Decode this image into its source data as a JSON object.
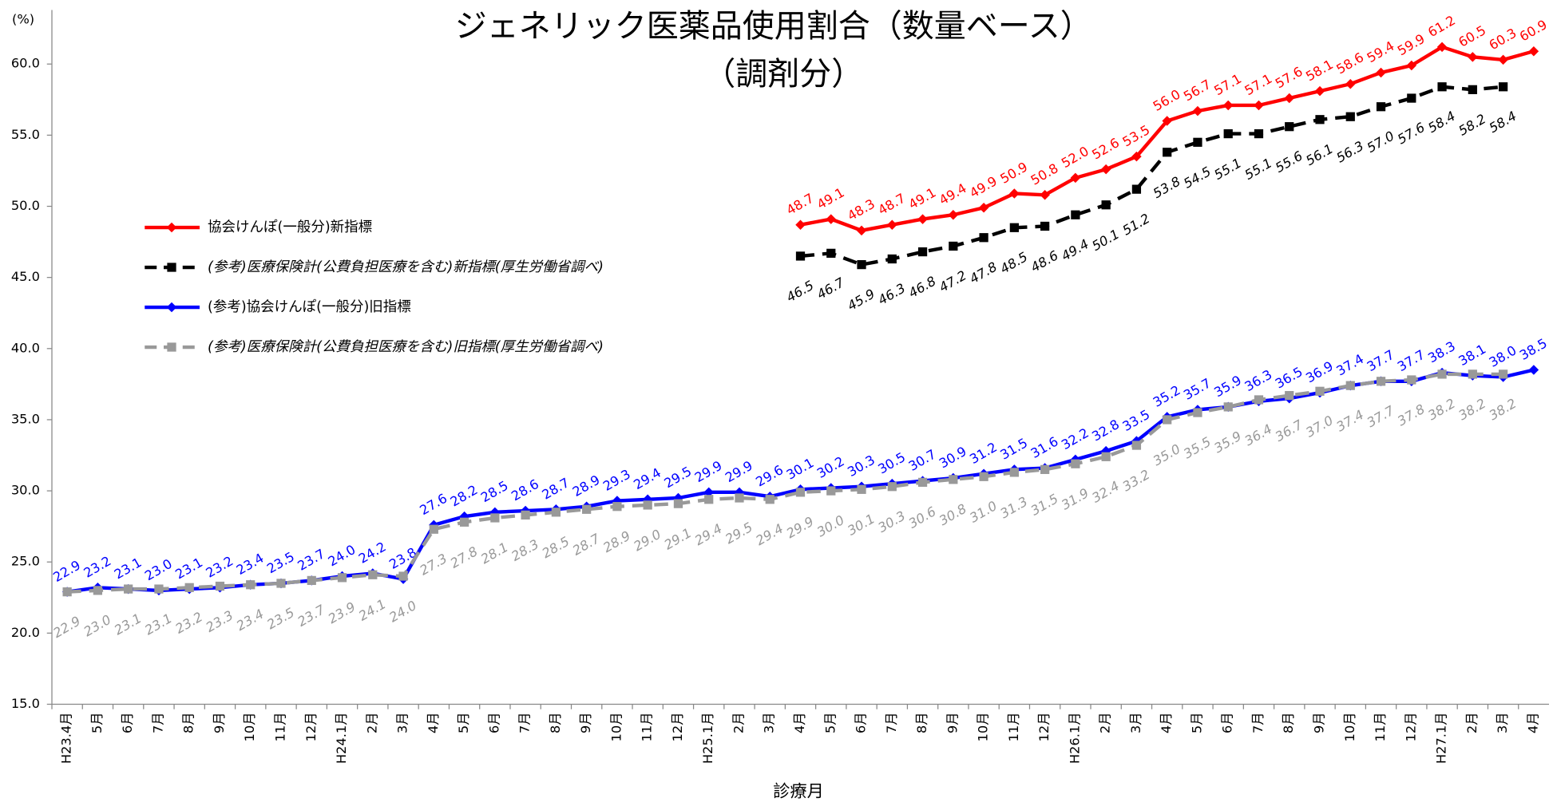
{
  "chart_data": {
    "type": "line",
    "title": "ジェネリック医薬品使用割合（数量ベース）",
    "subtitle": "（調剤分）",
    "y_axis_label": "(%)",
    "x_axis_label": "診療月",
    "categories": [
      "H23.4月",
      "5月",
      "6月",
      "7月",
      "8月",
      "9月",
      "10月",
      "11月",
      "12月",
      "H24.1月",
      "2月",
      "3月",
      "4月",
      "5月",
      "6月",
      "7月",
      "8月",
      "9月",
      "10月",
      "11月",
      "12月",
      "H25.1月",
      "2月",
      "3月",
      "4月",
      "5月",
      "6月",
      "7月",
      "8月",
      "9月",
      "10月",
      "11月",
      "12月",
      "H26.1月",
      "2月",
      "3月",
      "4月",
      "5月",
      "6月",
      "7月",
      "8月",
      "9月",
      "10月",
      "11月",
      "12月",
      "H27.1月",
      "2月",
      "3月",
      "4月"
    ],
    "ylim": [
      15,
      63.8
    ],
    "yticks": [
      {
        "value": 15,
        "label": "15.0"
      },
      {
        "value": 20,
        "label": "20.0"
      },
      {
        "value": 25,
        "label": "25.0"
      },
      {
        "value": 30,
        "label": "30.0"
      },
      {
        "value": 35,
        "label": "35.0"
      },
      {
        "value": 40,
        "label": "40.0"
      },
      {
        "value": 45,
        "label": "45.0"
      },
      {
        "value": 50,
        "label": "50.0"
      },
      {
        "value": 55,
        "label": "55.0"
      },
      {
        "value": 60,
        "label": "60.0"
      }
    ],
    "legend": "upper left",
    "series": [
      {
        "name": "協会けんぽ(一般分)新指標",
        "color": "#ff0000",
        "marker": "diamond",
        "dashed": false,
        "label_side": "above",
        "values": [
          null,
          null,
          null,
          null,
          null,
          null,
          null,
          null,
          null,
          null,
          null,
          null,
          null,
          null,
          null,
          null,
          null,
          null,
          null,
          null,
          null,
          null,
          null,
          null,
          48.7,
          49.1,
          48.3,
          48.7,
          49.1,
          49.4,
          49.9,
          50.9,
          50.8,
          52.0,
          52.6,
          53.5,
          56.0,
          56.7,
          57.1,
          57.1,
          57.6,
          58.1,
          58.6,
          59.4,
          59.9,
          61.2,
          60.5,
          60.3,
          60.9
        ],
        "value_labels": [
          null,
          null,
          null,
          null,
          null,
          null,
          null,
          null,
          null,
          null,
          null,
          null,
          null,
          null,
          null,
          null,
          null,
          null,
          null,
          null,
          null,
          null,
          null,
          null,
          "48.7",
          "49.1",
          "48.3",
          "48.7",
          "49.1",
          "49.4",
          "49.9",
          "50.9",
          "50.8",
          "52.0",
          "52.6",
          "53.5",
          "56.0",
          "56.7",
          "57.1",
          "57.1",
          "57.6",
          "58.1",
          "58.6",
          "59.4",
          "59.9",
          "61.2",
          "60.5",
          "60.3",
          "60.9"
        ]
      },
      {
        "name": "(参考)医療保険計(公費負担医療を含む)新指標(厚生労働省調べ)",
        "color": "#000000",
        "marker": "square",
        "dashed": true,
        "label_side": "below",
        "values": [
          null,
          null,
          null,
          null,
          null,
          null,
          null,
          null,
          null,
          null,
          null,
          null,
          null,
          null,
          null,
          null,
          null,
          null,
          null,
          null,
          null,
          null,
          null,
          null,
          46.5,
          46.7,
          45.9,
          46.3,
          46.8,
          47.2,
          47.8,
          48.5,
          48.6,
          49.4,
          50.1,
          51.2,
          53.8,
          54.5,
          55.1,
          55.1,
          55.6,
          56.1,
          56.3,
          57.0,
          57.6,
          58.4,
          58.2,
          58.4,
          null
        ],
        "value_labels": [
          null,
          null,
          null,
          null,
          null,
          null,
          null,
          null,
          null,
          null,
          null,
          null,
          null,
          null,
          null,
          null,
          null,
          null,
          null,
          null,
          null,
          null,
          null,
          null,
          "46.5",
          "46.7",
          "45.9",
          "46.3",
          "46.8",
          "47.2",
          "47.8",
          "48.5",
          "48.6",
          "49.4",
          "50.1",
          "51.2",
          "53.8",
          "54.5",
          "55.1",
          "55.1",
          "55.6",
          "56.1",
          "56.3",
          "57.0",
          "57.6",
          "58.4",
          "58.2",
          "58.4",
          null
        ]
      },
      {
        "name": "(参考)協会けんぽ(一般分)旧指標",
        "color": "#0000ff",
        "marker": "diamond",
        "dashed": false,
        "label_side": "above",
        "values": [
          22.9,
          23.2,
          23.1,
          23.0,
          23.1,
          23.2,
          23.4,
          23.5,
          23.7,
          24.0,
          24.2,
          23.8,
          27.6,
          28.2,
          28.5,
          28.6,
          28.7,
          28.9,
          29.3,
          29.4,
          29.5,
          29.9,
          29.9,
          29.6,
          30.1,
          30.2,
          30.3,
          30.5,
          30.7,
          30.9,
          31.2,
          31.5,
          31.6,
          32.2,
          32.8,
          33.5,
          35.2,
          35.7,
          35.9,
          36.3,
          36.5,
          36.9,
          37.4,
          37.7,
          37.7,
          38.3,
          38.1,
          38.0,
          38.5
        ],
        "value_labels": [
          "22.9",
          "23.2",
          "23.1",
          "23.0",
          "23.1",
          "23.2",
          "23.4",
          "23.5",
          "23.7",
          "24.0",
          "24.2",
          "23.8",
          "27.6",
          "28.2",
          "28.5",
          "28.6",
          "28.7",
          "28.9",
          "29.3",
          "29.4",
          "29.5",
          "29.9",
          "29.9",
          "29.6",
          "30.1",
          "30.2",
          "30.3",
          "30.5",
          "30.7",
          "30.9",
          "31.2",
          "31.5",
          "31.6",
          "32.2",
          "32.8",
          "33.5",
          "35.2",
          "35.7",
          "35.9",
          "36.3",
          "36.5",
          "36.9",
          "37.4",
          "37.7",
          "37.7",
          "38.3",
          "38.1",
          "38.0",
          "38.5"
        ]
      },
      {
        "name": "(参考)医療保険計(公費負担医療を含む)旧指標(厚生労働省調べ)",
        "color": "#999999",
        "marker": "square",
        "dashed": true,
        "label_side": "below",
        "values": [
          22.9,
          23.0,
          23.1,
          23.1,
          23.2,
          23.3,
          23.4,
          23.5,
          23.7,
          23.9,
          24.1,
          24.0,
          27.3,
          27.8,
          28.1,
          28.3,
          28.5,
          28.7,
          28.9,
          29.0,
          29.1,
          29.4,
          29.5,
          29.4,
          29.9,
          30.0,
          30.1,
          30.3,
          30.6,
          30.8,
          31.0,
          31.3,
          31.5,
          31.9,
          32.4,
          33.2,
          35.0,
          35.5,
          35.9,
          36.4,
          36.7,
          37.0,
          37.4,
          37.7,
          37.8,
          38.2,
          38.2,
          38.2,
          null
        ],
        "value_labels": [
          "22.9",
          "23.0",
          "23.1",
          "23.1",
          "23.2",
          "23.3",
          "23.4",
          "23.5",
          "23.7",
          "23.9",
          "24.1",
          "24.0",
          "27.3",
          "27.8",
          "28.1",
          "28.3",
          "28.5",
          "28.7",
          "28.9",
          "29.0",
          "29.1",
          "29.4",
          "29.5",
          "29.4",
          "29.9",
          "30.0",
          "30.1",
          "30.3",
          "30.6",
          "30.8",
          "31.0",
          "31.3",
          "31.5",
          "31.9",
          "32.4",
          "33.2",
          "35.0",
          "35.5",
          "35.9",
          "36.4",
          "36.7",
          "37.0",
          "37.4",
          "37.7",
          "37.8",
          "38.2",
          "38.2",
          "38.2",
          null
        ]
      }
    ]
  }
}
